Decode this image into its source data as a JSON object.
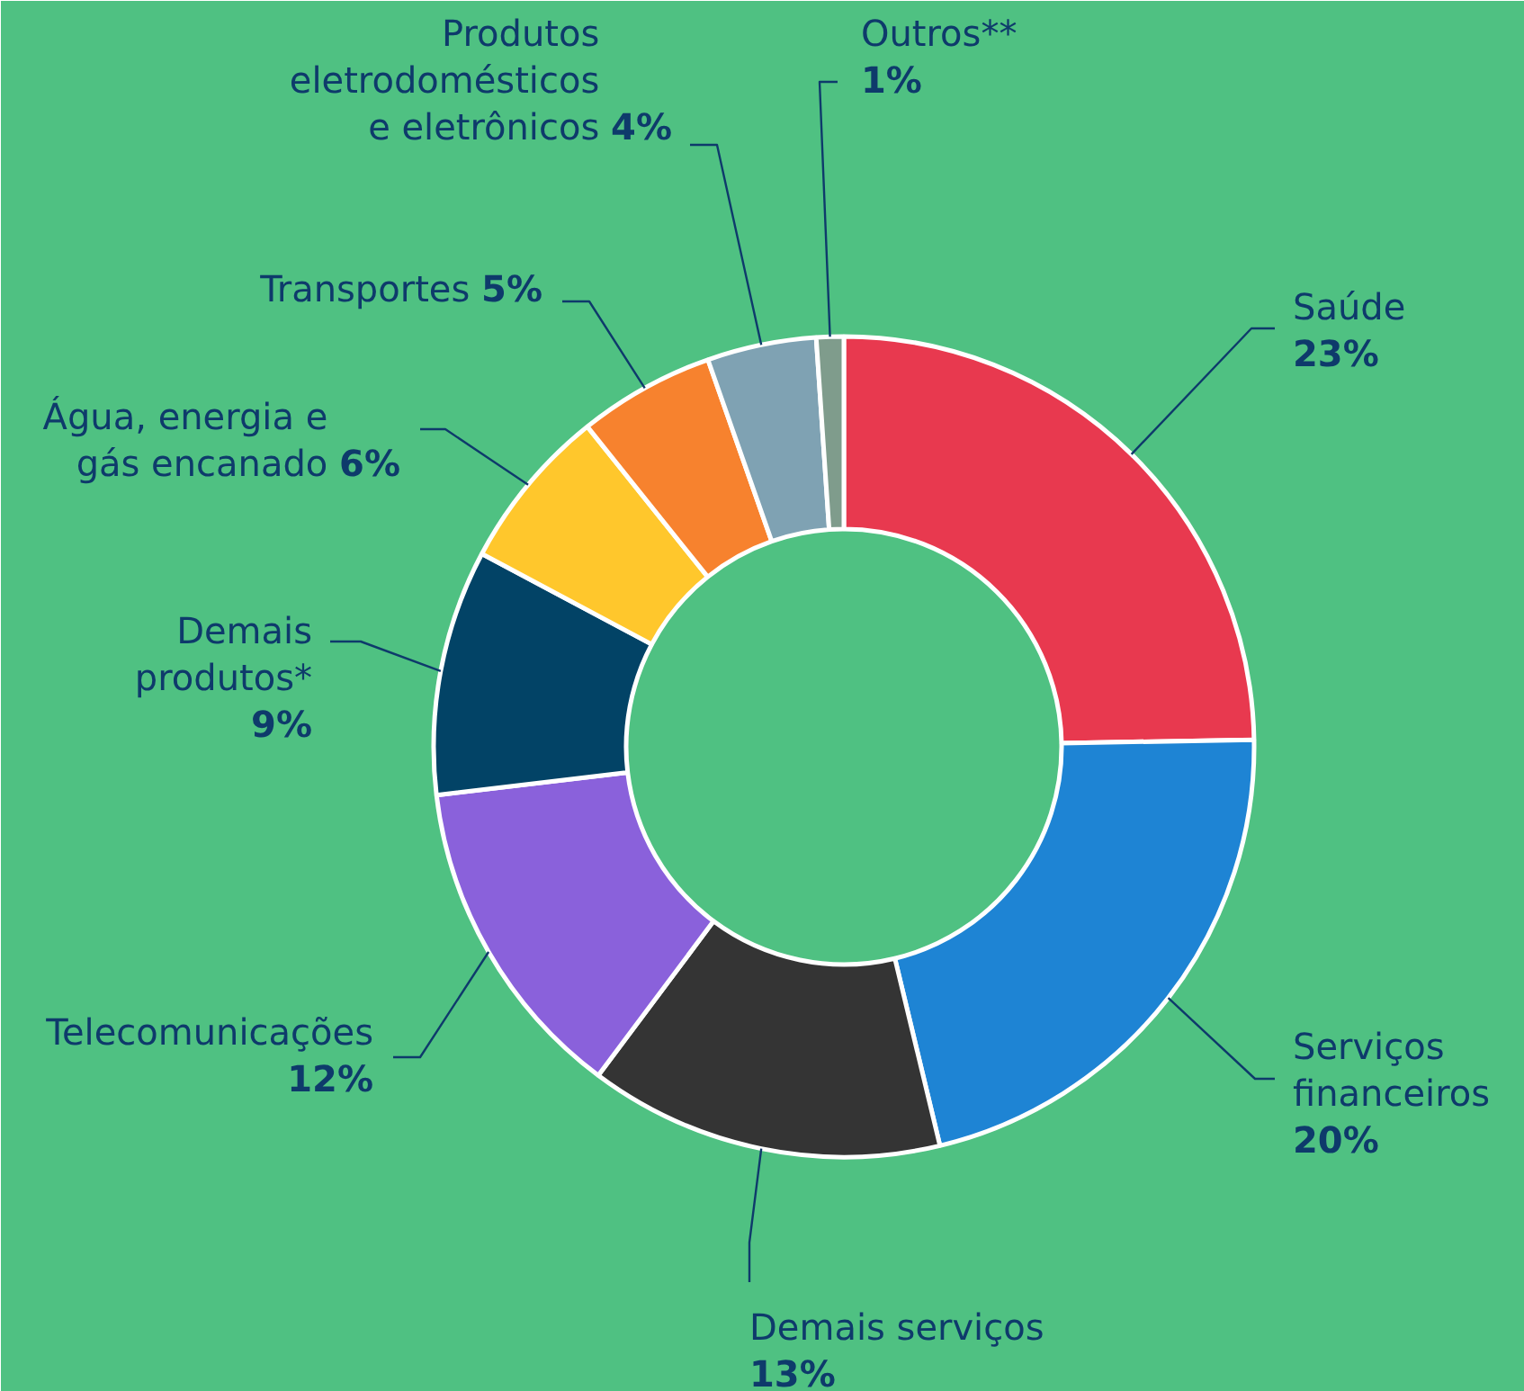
{
  "chart_data": {
    "type": "donut",
    "categories": [
      "Saúde",
      "Serviços financeiros",
      "Demais serviços",
      "Telecomunicações",
      "Demais produtos*",
      "Água, energia e gás encanado",
      "Transportes",
      "Produtos eletrodomésticos e eletrônicos",
      "Outros**"
    ],
    "values": [
      23,
      20,
      13,
      12,
      9,
      6,
      5,
      4,
      1
    ],
    "value_labels": [
      "23%",
      "20%",
      "13%",
      "12%",
      "9%",
      "6%",
      "5%",
      "4%",
      "1%"
    ],
    "colors": [
      "#e8394f",
      "#1e84d4",
      "#343434",
      "#8a61db",
      "#024366",
      "#ffc72c",
      "#f7822e",
      "#7fa2b3",
      "#7f9c8c"
    ]
  }
}
